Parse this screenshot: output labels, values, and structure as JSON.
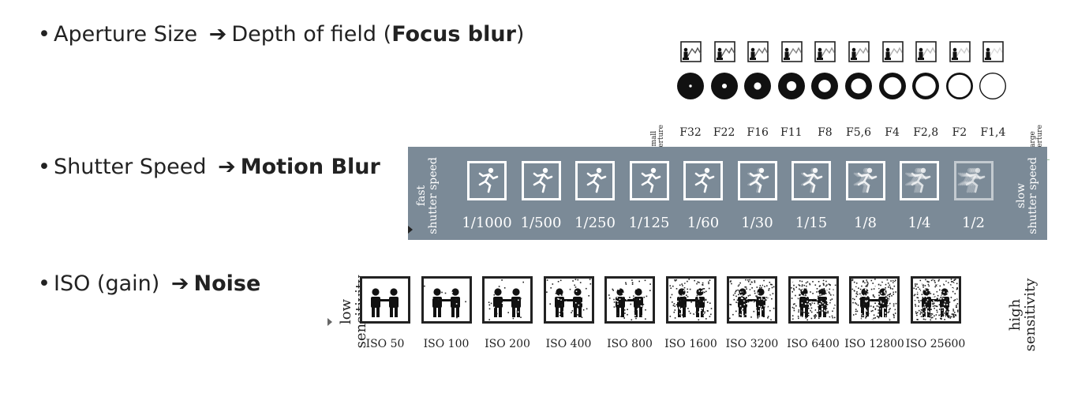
{
  "bullets": {
    "aperture": {
      "prefix": "Aperture Size",
      "middle": "Depth of field (",
      "bold": "Focus blur",
      "suffix": ")"
    },
    "shutter": {
      "prefix": "Shutter Speed",
      "bold": "Motion Blur"
    },
    "iso": {
      "prefix": "ISO (gain)",
      "bold": "Noise"
    },
    "bullet_char": "•",
    "arrow_char": "➔"
  },
  "aperture_scale": {
    "start_label": [
      "small",
      "aperture"
    ],
    "end_label": [
      "large",
      "aperture"
    ],
    "stops": [
      "F32",
      "F22",
      "F16",
      "F11",
      "F8",
      "F5,6",
      "F4",
      "F2,8",
      "F2",
      "F1,4"
    ],
    "opening_fraction": [
      0.1,
      0.18,
      0.27,
      0.36,
      0.46,
      0.56,
      0.66,
      0.75,
      0.84,
      0.92
    ]
  },
  "shutter_scale": {
    "start_label": [
      "fast",
      "shutter speed"
    ],
    "end_label": [
      "slow",
      "shutter speed"
    ],
    "speeds": [
      "1/1000",
      "1/500",
      "1/250",
      "1/125",
      "1/60",
      "1/30",
      "1/15",
      "1/8",
      "1/4",
      "1/2"
    ],
    "blur_fraction": [
      0,
      0,
      0,
      0,
      0.05,
      0.1,
      0.2,
      0.35,
      0.6,
      0.85
    ],
    "background_color": "#7b8a97"
  },
  "iso_scale": {
    "start_label": [
      "low",
      "sensitivity"
    ],
    "end_label": [
      "high",
      "sensitivity"
    ],
    "levels": [
      "ISO 50",
      "ISO 100",
      "ISO 200",
      "ISO 400",
      "ISO 800",
      "ISO 1600",
      "ISO 3200",
      "ISO 6400",
      "ISO 12800",
      "ISO 25600"
    ],
    "noise_fraction": [
      0,
      0.03,
      0.08,
      0.15,
      0.25,
      0.38,
      0.5,
      0.62,
      0.75,
      0.88
    ]
  }
}
